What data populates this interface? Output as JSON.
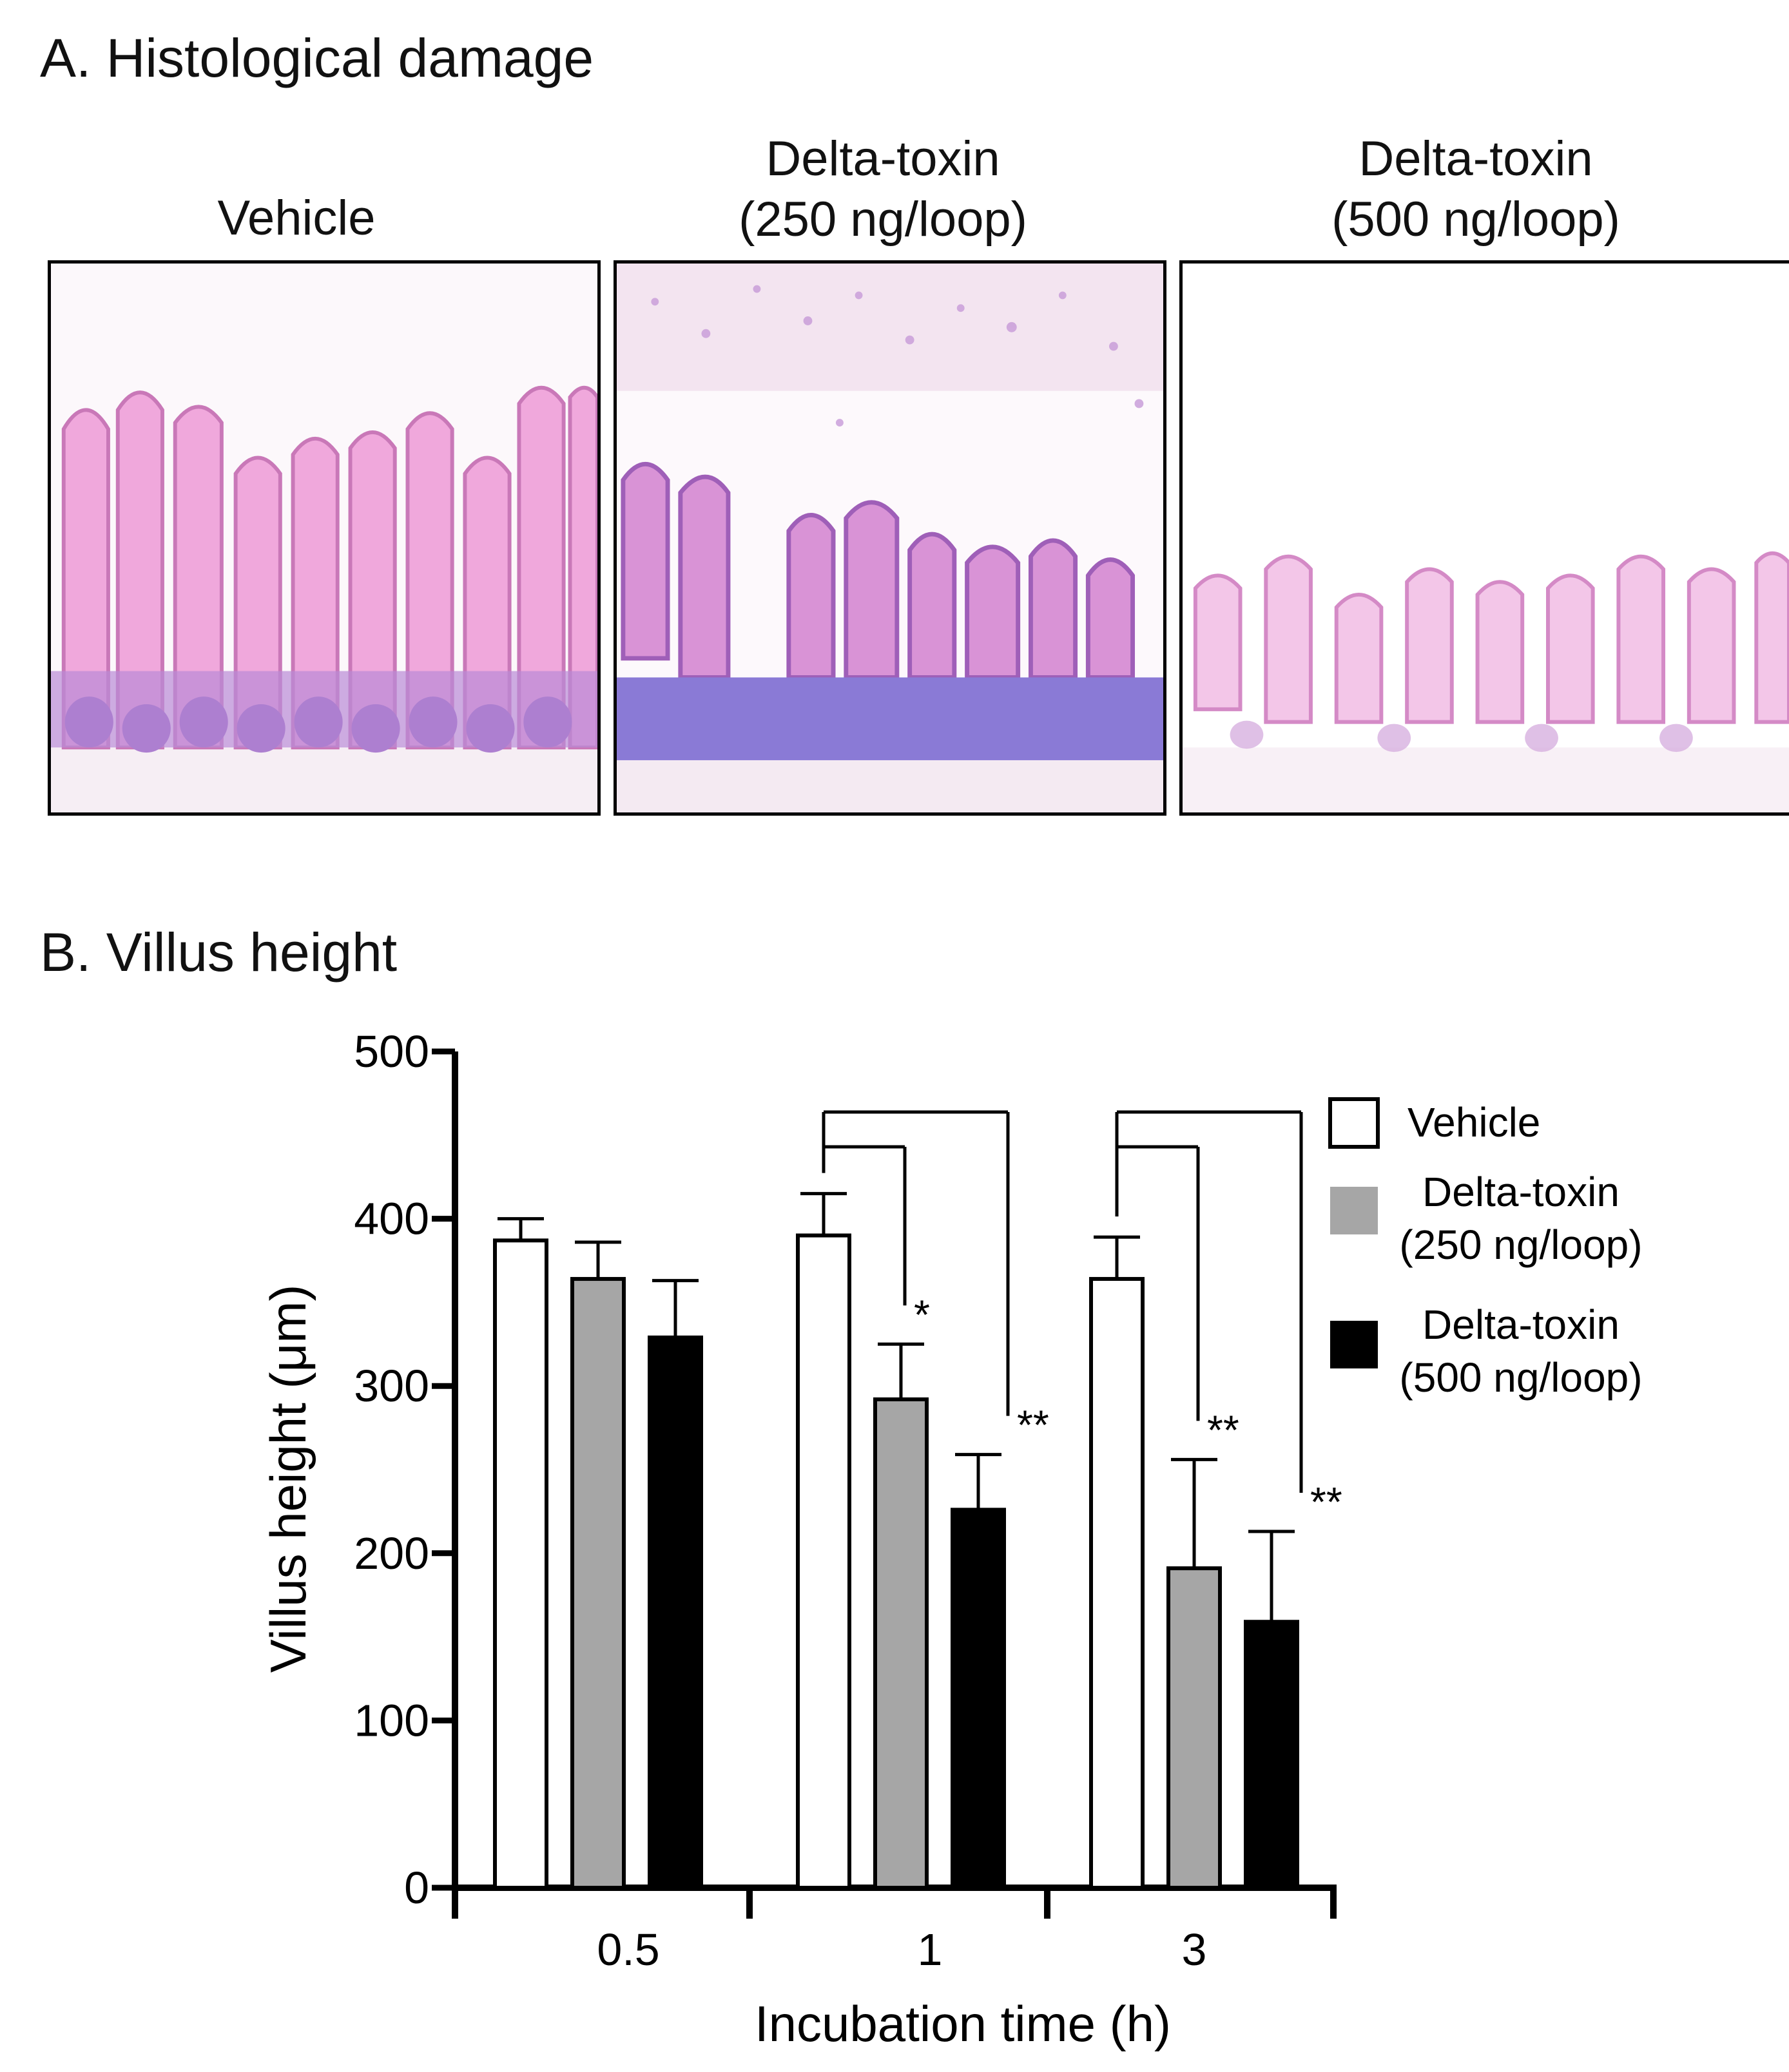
{
  "panel_a": {
    "title": "A. Histological damage",
    "images": [
      {
        "label_line1": "Vehicle",
        "label_line2": ""
      },
      {
        "label_line1": "Delta-toxin",
        "label_line2": "(250 ng/loop)"
      },
      {
        "label_line1": "Delta-toxin",
        "label_line2": "(500 ng/loop)"
      }
    ]
  },
  "panel_b": {
    "title": "B. Villus height"
  },
  "chart_data": {
    "type": "bar",
    "xlabel": "Incubation time (h)",
    "ylabel": "Villus height (μm)",
    "ylim": [
      0,
      500
    ],
    "yticks": [
      0,
      100,
      200,
      300,
      400,
      500
    ],
    "categories": [
      "0.5",
      "1",
      "3"
    ],
    "grid": false,
    "legend_position": "top-right",
    "series": [
      {
        "name": "Vehicle",
        "name_line2": "",
        "color": "#ffffff",
        "values": [
          387,
          390,
          364
        ],
        "errors": [
          13,
          25,
          25
        ]
      },
      {
        "name": "Delta-toxin",
        "name_line2": "(250 ng/loop)",
        "color": "#a6a6a6",
        "values": [
          364,
          292,
          191
        ],
        "errors": [
          22,
          33,
          65
        ]
      },
      {
        "name": "Delta-toxin",
        "name_line2": "(500 ng/loop)",
        "color": "#000000",
        "values": [
          329,
          226,
          159
        ],
        "errors": [
          34,
          33,
          54
        ]
      }
    ],
    "significance": [
      {
        "category": "1",
        "series_index": 1,
        "label": "*"
      },
      {
        "category": "1",
        "series_index": 2,
        "label": "**"
      },
      {
        "category": "3",
        "series_index": 1,
        "label": "**"
      },
      {
        "category": "3",
        "series_index": 2,
        "label": "**"
      }
    ]
  }
}
